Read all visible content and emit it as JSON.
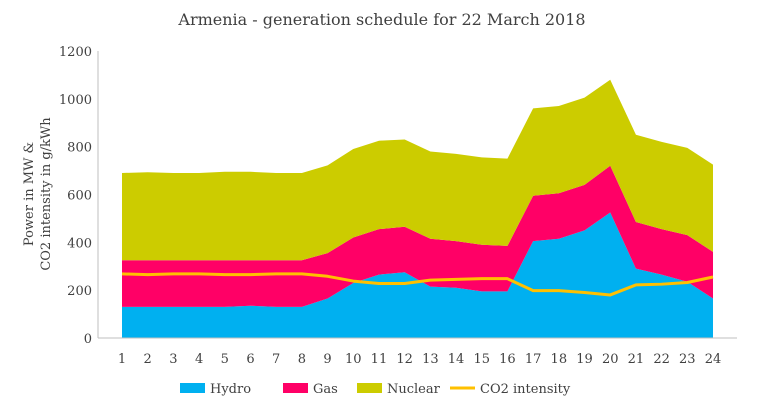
{
  "chart_data": {
    "type": "area",
    "title": "Armenia - generation schedule for 22 March 2018",
    "ylabel_lines": [
      "Power in MW &",
      "CO2 intensity in g/kWh"
    ],
    "xlabel": "",
    "ylim": [
      0,
      1200
    ],
    "yticks": [
      "0",
      "200",
      "400",
      "600",
      "800",
      "1000",
      "1200"
    ],
    "x": [
      "1",
      "2",
      "3",
      "4",
      "5",
      "6",
      "7",
      "8",
      "9",
      "10",
      "11",
      "12",
      "13",
      "14",
      "15",
      "16",
      "17",
      "18",
      "19",
      "20",
      "21",
      "22",
      "23",
      "24"
    ],
    "grid": false,
    "legend_position": "bottom",
    "stacked_series": [
      {
        "name": "Hydro",
        "color": "#00B0F0",
        "values": [
          130,
          130,
          130,
          130,
          130,
          135,
          130,
          130,
          165,
          230,
          265,
          275,
          215,
          210,
          195,
          195,
          405,
          415,
          450,
          525,
          290,
          265,
          235,
          165
        ]
      },
      {
        "name": "Gas",
        "color": "#FF0066",
        "values": [
          195,
          195,
          195,
          195,
          195,
          190,
          195,
          195,
          190,
          190,
          190,
          190,
          200,
          195,
          195,
          190,
          190,
          190,
          190,
          195,
          195,
          190,
          195,
          195
        ]
      },
      {
        "name": "Nuclear",
        "color": "#CCCC00",
        "values": [
          365,
          368,
          365,
          365,
          370,
          370,
          365,
          365,
          367,
          370,
          370,
          365,
          365,
          365,
          365,
          365,
          365,
          365,
          365,
          360,
          365,
          365,
          365,
          365
        ]
      }
    ],
    "line_series": [
      {
        "name": "CO2 intensity",
        "color": "#FFC000",
        "values": [
          268,
          265,
          268,
          268,
          265,
          265,
          268,
          268,
          258,
          238,
          228,
          228,
          242,
          245,
          248,
          248,
          198,
          198,
          190,
          180,
          222,
          225,
          232,
          255
        ]
      }
    ]
  }
}
